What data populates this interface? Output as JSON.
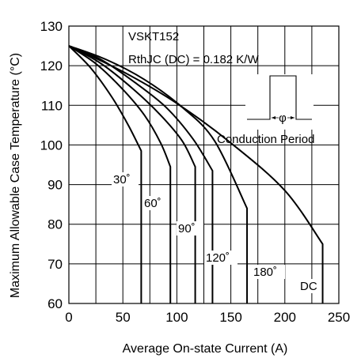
{
  "chart_data": {
    "type": "line",
    "xlabel": "Average On-state Current (A)",
    "ylabel": "Maximum Allowable Case Temperature (°C)",
    "xlim": [
      0,
      250
    ],
    "ylim": [
      60,
      130
    ],
    "xticks": [
      0,
      50,
      100,
      150,
      200,
      250
    ],
    "yticks": [
      60,
      70,
      80,
      90,
      100,
      110,
      120,
      130
    ],
    "grid": true,
    "annotations": [
      "VSKT152",
      "RthJC (DC) = 0.182 K/W",
      "Conduction Period"
    ],
    "inset_symbol": "φ",
    "series": [
      {
        "name": "30˚",
        "x": [
          0,
          20,
          40,
          55,
          67,
          67
        ],
        "y": [
          125,
          119.5,
          112,
          105,
          98.5,
          60
        ]
      },
      {
        "name": "60˚",
        "x": [
          0,
          25,
          50,
          70,
          85,
          94,
          94
        ],
        "y": [
          125,
          120.5,
          114,
          107.5,
          100.5,
          94.5,
          60
        ]
      },
      {
        "name": "90˚",
        "x": [
          0,
          30,
          60,
          85,
          105,
          117,
          117
        ],
        "y": [
          125,
          120.5,
          114,
          107.5,
          101,
          94.5,
          60
        ]
      },
      {
        "name": "120˚",
        "x": [
          0,
          30,
          60,
          90,
          115,
          133,
          133
        ],
        "y": [
          125,
          121.5,
          116,
          109.5,
          101.5,
          93.5,
          60
        ]
      },
      {
        "name": "180˚",
        "x": [
          0,
          35,
          70,
          105,
          135,
          165,
          165
        ],
        "y": [
          125,
          121.5,
          116.5,
          109.5,
          101,
          84,
          60
        ]
      },
      {
        "name": "DC",
        "x": [
          0,
          50,
          100,
          150,
          200,
          235,
          235
        ],
        "y": [
          125,
          118.5,
          110.5,
          100.5,
          88.5,
          75,
          60
        ]
      }
    ],
    "curve_labels": [
      "30˚",
      "60˚",
      "90˚",
      "120˚",
      "180˚",
      "DC"
    ]
  }
}
